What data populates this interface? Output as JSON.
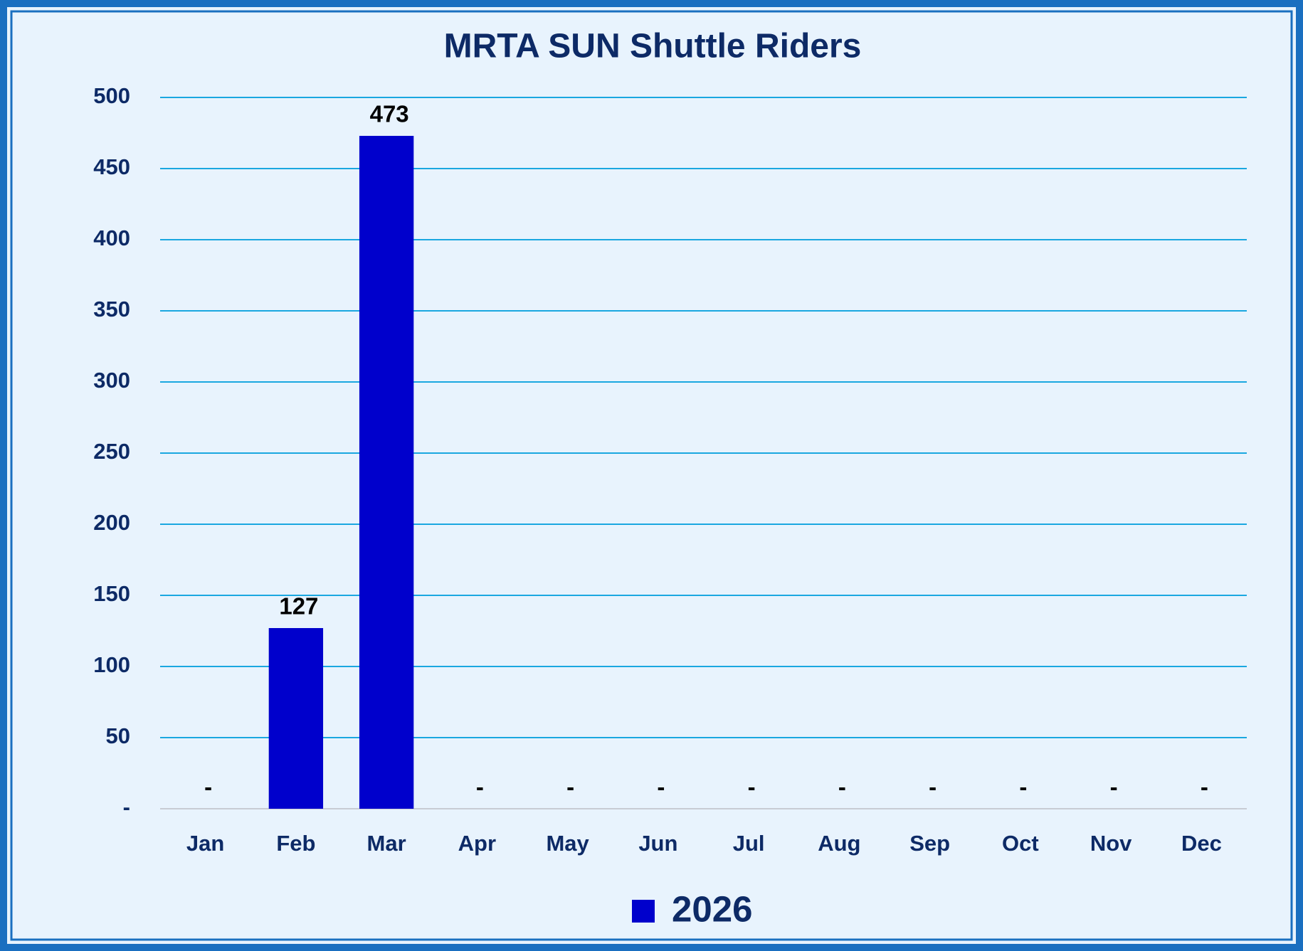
{
  "chart_data": {
    "type": "bar",
    "title": "MRTA SUN Shuttle Riders",
    "categories": [
      "Jan",
      "Feb",
      "Mar",
      "Apr",
      "May",
      "Jun",
      "Jul",
      "Aug",
      "Sep",
      "Oct",
      "Nov",
      "Dec"
    ],
    "series": [
      {
        "name": "2026",
        "color": "#0000cc",
        "values": [
          0,
          127,
          473,
          0,
          0,
          0,
          0,
          0,
          0,
          0,
          0,
          0
        ],
        "value_labels": [
          "-",
          "127",
          "473",
          "-",
          "-",
          "-",
          "-",
          "-",
          "-",
          "-",
          "-",
          "-"
        ]
      }
    ],
    "ylim": [
      0,
      500
    ],
    "yticks": [
      {
        "value": 0,
        "label": "-"
      },
      50,
      100,
      150,
      200,
      250,
      300,
      350,
      400,
      450,
      500
    ],
    "grid": true,
    "legend": "bottom"
  }
}
